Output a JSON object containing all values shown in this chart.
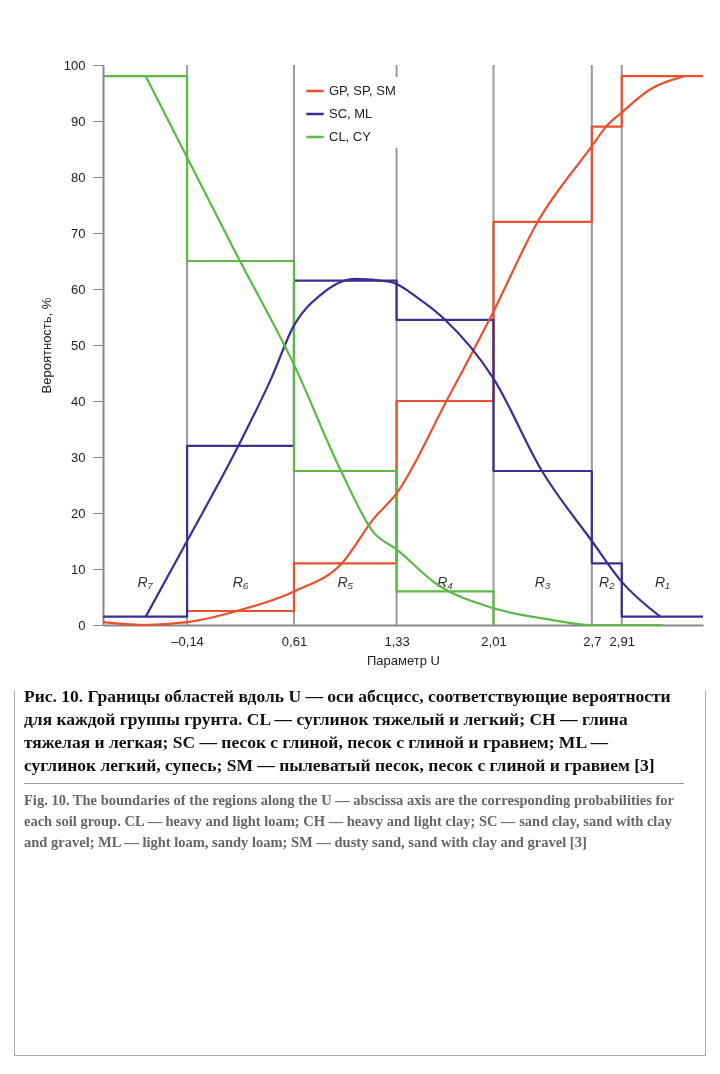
{
  "chart_data": {
    "type": "line",
    "xlabel": "Параметр U",
    "ylabel": "Вероятность, %",
    "xlim": [
      -0.73,
      3.48
    ],
    "ylim": [
      0,
      100
    ],
    "xticks": [
      {
        "value": -0.14,
        "label": "–0,14"
      },
      {
        "value": 0.61,
        "label": "0,61"
      },
      {
        "value": 1.33,
        "label": "1,33"
      },
      {
        "value": 2.01,
        "label": "2,01"
      },
      {
        "value": 2.7,
        "label": "2,7"
      },
      {
        "value": 2.91,
        "label": "2,91"
      }
    ],
    "yticks": [
      0,
      10,
      20,
      30,
      40,
      50,
      60,
      70,
      80,
      90,
      100
    ],
    "grid": false,
    "legend": "top",
    "series": [
      {
        "type": "step",
        "color": "#e8512f",
        "x": [
          -0.14,
          0.61,
          1.33,
          2.01,
          2.7,
          2.91,
          3.48
        ],
        "values": [
          2.5,
          11,
          40,
          72,
          89,
          98,
          98
        ]
      },
      {
        "type": "step",
        "color": "#3b2f8f",
        "x": [
          -0.73,
          -0.14,
          0.61,
          1.33,
          2.01,
          2.7,
          2.91,
          3.48
        ],
        "values": [
          1.5,
          32,
          61.5,
          54.5,
          27.5,
          11,
          1.5,
          1.5
        ]
      },
      {
        "type": "step",
        "color": "#5cb946",
        "x": [
          -0.73,
          -0.14,
          0.61,
          1.33,
          2.01
        ],
        "values": [
          98,
          65,
          27.5,
          6,
          0
        ]
      },
      {
        "type": "line",
        "name": "GP, SP, SM",
        "color": "#e8512f",
        "x": [
          -0.73,
          -0.45,
          -0.14,
          0.21,
          0.61,
          0.945,
          1.17,
          1.33,
          1.68,
          2.01,
          2.32,
          2.7,
          2.8,
          2.91,
          3.1,
          3.35
        ],
        "values": [
          0.5,
          0,
          0.5,
          2.5,
          6,
          11,
          19,
          23.5,
          40,
          56,
          72,
          85.5,
          89,
          91.5,
          95.5,
          98
        ]
      },
      {
        "type": "line",
        "name": "SC, ML",
        "color": "#3b2f8f",
        "x": [
          -0.43,
          -0.14,
          0.22,
          0.45,
          0.61,
          0.8,
          1.04,
          1.28,
          1.5,
          1.67,
          2.01,
          2.35,
          2.7,
          2.91,
          3.18
        ],
        "values": [
          1.5,
          15,
          32,
          44,
          53.5,
          59,
          61.8,
          61.3,
          58,
          54.5,
          44,
          27.5,
          15,
          7.7,
          1.5
        ]
      },
      {
        "type": "line",
        "name": "CL, CY",
        "color": "#5cb946",
        "x": [
          -0.43,
          -0.14,
          0.2,
          0.61,
          0.94,
          1.17,
          1.33,
          1.6,
          2.01,
          2.4,
          2.7,
          3.2
        ],
        "values": [
          98,
          83.5,
          66.5,
          46.5,
          27.5,
          16.5,
          13.5,
          7.5,
          3,
          1,
          0,
          0
        ]
      }
    ],
    "ref_lines": [
      {
        "axis": "x",
        "value": -0.14,
        "color": "#9a9a9a"
      },
      {
        "axis": "x",
        "value": 0.61,
        "color": "#9a9a9a"
      },
      {
        "axis": "x",
        "value": 1.33,
        "color": "#9a9a9a"
      },
      {
        "axis": "x",
        "value": 2.01,
        "color": "#9a9a9a"
      },
      {
        "axis": "x",
        "value": 2.7,
        "color": "#9a9a9a"
      },
      {
        "axis": "x",
        "value": 2.91,
        "color": "#9a9a9a"
      }
    ],
    "annotations": [
      "R₇",
      "R₆",
      "R₅",
      "R₄",
      "R₃",
      "R₂",
      "R₁",
      "Рис. 10. Границы областей вдоль U — оси абсцисс, соответствующие вероятности для каждой группы грунта. CL — суглинок тяжелый и легкий; CH — глина тяжелая и легкая; SC — песок с глиной, песок с глиной и гравием; ML — суглинок легкий, супесь; SM — пылеватый песок, песок с глиной и гравием [3]",
      "Fig. 10. The boundaries of the regions along the U — abscissa axis are the corresponding probabilities for each soil group. CL — heavy and light loam; CH — heavy and light clay; SC — sand clay, sand with clay and gravel; ML — light loam, sandy loam; SM — dusty sand, sand with clay and gravel [3]"
    ]
  }
}
